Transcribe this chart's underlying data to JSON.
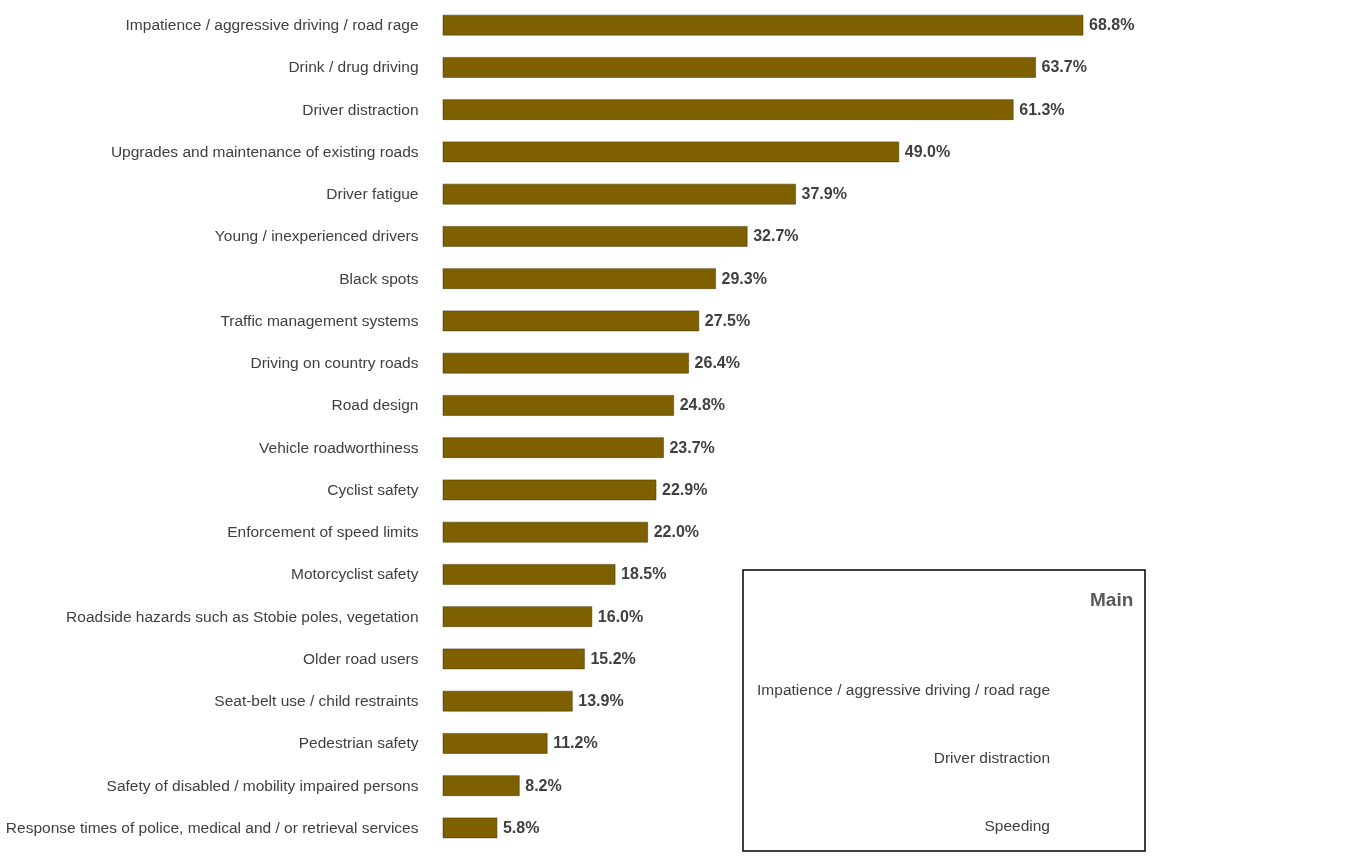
{
  "chart_data": [
    {
      "type": "bar",
      "orientation": "horizontal",
      "value_labels": [
        "68.8%",
        "63.7%",
        "61.3%",
        "49.0%",
        "37.9%",
        "32.7%",
        "29.3%",
        "27.5%",
        "26.4%",
        "24.8%",
        "23.7%",
        "22.9%",
        "22.0%",
        "18.5%",
        "16.0%",
        "15.2%",
        "13.9%",
        "11.2%",
        "8.2%",
        "5.8%"
      ],
      "categories": [
        "Impatience / aggressive driving / road rage",
        "Drink / drug driving",
        "Driver distraction",
        "Upgrades and maintenance of existing roads",
        "Driver fatigue",
        "Young / inexperienced drivers",
        "Black spots",
        "Traffic management systems",
        "Driving on country roads",
        "Road design",
        "Vehicle roadworthiness",
        "Cyclist safety",
        "Enforcement of speed limits",
        "Motorcyclist safety",
        "Roadside hazards such as Stobie poles, vegetation",
        "Older road users",
        "Seat-belt use / child restraints",
        "Pedestrian safety",
        "Safety of disabled / mobility impaired persons",
        "Response times of police, medical and / or retrieval services"
      ],
      "values": [
        68.8,
        63.7,
        61.3,
        49.0,
        37.9,
        32.7,
        29.3,
        27.5,
        26.4,
        24.8,
        23.7,
        22.9,
        22.0,
        18.5,
        16.0,
        15.2,
        13.9,
        11.2,
        8.2,
        5.8
      ],
      "color": "#7f6000"
    },
    {
      "type": "other",
      "title": "Main",
      "categories": [
        "Impatience / aggressive driving / road rage",
        "Driver distraction",
        "Speeding"
      ]
    }
  ]
}
